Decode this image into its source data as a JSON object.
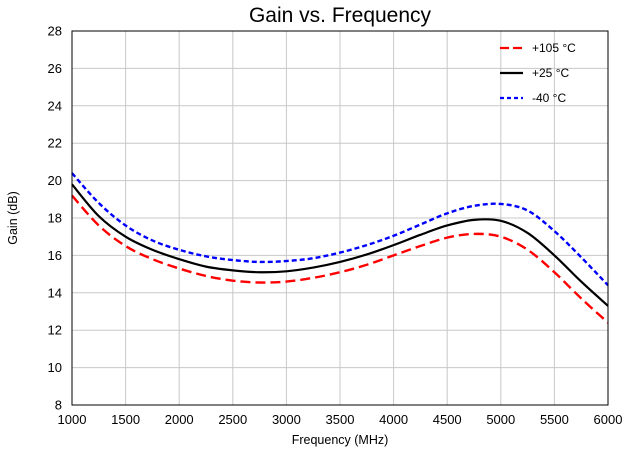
{
  "chart_data": {
    "type": "line",
    "title": "Gain vs. Frequency",
    "xlabel": "Frequency (MHz)",
    "ylabel": "Gain (dB)",
    "xlim": [
      1000,
      6000
    ],
    "ylim": [
      8,
      28
    ],
    "xticks": [
      1000,
      1500,
      2000,
      2500,
      3000,
      3500,
      4000,
      4500,
      5000,
      5500,
      6000
    ],
    "yticks": [
      8,
      10,
      12,
      14,
      16,
      18,
      20,
      22,
      24,
      26,
      28
    ],
    "grid": true,
    "legend_position": "top-right",
    "x": [
      1000,
      1250,
      1500,
      1750,
      2000,
      2250,
      2500,
      2750,
      3000,
      3250,
      3500,
      3750,
      4000,
      4250,
      4500,
      4750,
      5000,
      5250,
      5500,
      5750,
      6000
    ],
    "series": [
      {
        "name": "+105 °C",
        "color": "#ff0000",
        "style": "dashed",
        "values": [
          19.2,
          17.6,
          16.5,
          15.8,
          15.3,
          14.9,
          14.65,
          14.55,
          14.6,
          14.8,
          15.1,
          15.5,
          16.0,
          16.5,
          16.95,
          17.15,
          17.0,
          16.3,
          15.1,
          13.7,
          12.4
        ]
      },
      {
        "name": "+25 °C",
        "color": "#000000",
        "style": "solid",
        "values": [
          19.8,
          18.1,
          17.0,
          16.3,
          15.8,
          15.4,
          15.2,
          15.1,
          15.15,
          15.35,
          15.65,
          16.05,
          16.55,
          17.1,
          17.6,
          17.9,
          17.85,
          17.2,
          16.0,
          14.6,
          13.3
        ]
      },
      {
        "name": "-40 °C",
        "color": "#0000ff",
        "style": "dotted",
        "values": [
          20.4,
          18.8,
          17.6,
          16.8,
          16.3,
          15.95,
          15.75,
          15.65,
          15.7,
          15.85,
          16.15,
          16.55,
          17.05,
          17.65,
          18.25,
          18.65,
          18.75,
          18.4,
          17.3,
          15.9,
          14.4
        ]
      }
    ]
  }
}
